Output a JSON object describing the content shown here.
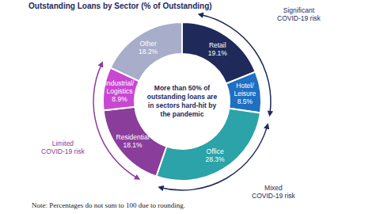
{
  "chart_data": {
    "type": "pie",
    "title": "Outstanding Loans by Sector (% of Outstanding)",
    "categories": [
      "Retail",
      "Hotel/Leisure",
      "Office",
      "Residential",
      "Industrial/Logistics",
      "Other"
    ],
    "values": [
      19.1,
      8.5,
      28.3,
      18.1,
      8.9,
      18.2
    ],
    "value_labels": [
      "19.1%",
      "8.5%",
      "28.3%",
      "18.1%",
      "8.9%",
      "18.2%"
    ],
    "colors": [
      "#1f2a5a",
      "#1f6fc2",
      "#2ba3a8",
      "#8b3d9c",
      "#c948d2",
      "#a8adc9"
    ],
    "data_labels": true,
    "center_text": "More than 50% of outstanding loans are in sectors hard-hit by the pandemic",
    "annotations": [
      "Significant COVID-19 risk",
      "Mixed COVID-19 risk",
      "Limited COVID-19 risk"
    ],
    "note": "Note: Percentages do not sum to 100 due to rounding."
  }
}
